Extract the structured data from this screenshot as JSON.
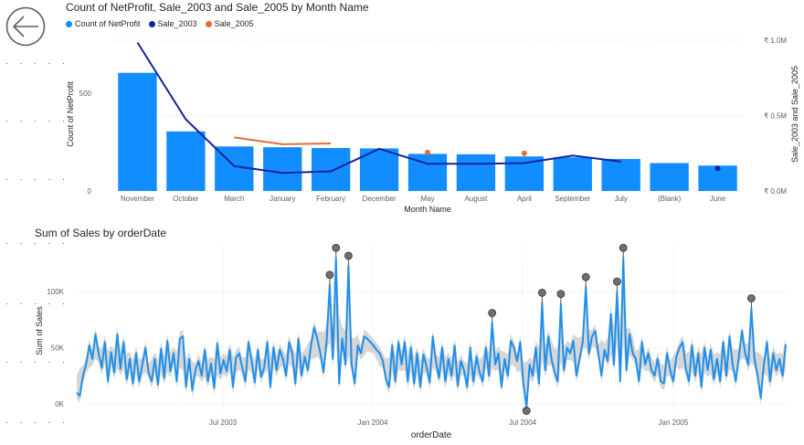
{
  "nav": {
    "back_icon": "back-arrow-icon"
  },
  "colors": {
    "bar": "#118DFF",
    "sale2003": "#12239E",
    "sale2005": "#E66C37",
    "line2": "#1F8FEA",
    "band": "#C8C8C8",
    "marker": "#707070"
  },
  "chart_data": [
    {
      "type": "bar",
      "title": "Count of NetProfit, Sale_2003 and Sale_2005 by Month Name",
      "xlabel": "Month Name",
      "ylabel": "Count of NetProfit",
      "y2label": "Sale_2003 and Sale_2005",
      "categories": [
        "November",
        "October",
        "March",
        "January",
        "February",
        "December",
        "May",
        "August",
        "April",
        "September",
        "July",
        "(Blank)",
        "June"
      ],
      "ylim": [
        0,
        800
      ],
      "yticks": [
        0,
        500
      ],
      "y2lim": [
        0,
        1000000
      ],
      "y2ticks": [
        {
          "value": 0,
          "label": "₹ 0.0M"
        },
        {
          "value": 500000,
          "label": "₹ 0.5M"
        },
        {
          "value": 1000000,
          "label": "₹ 1.0M"
        }
      ],
      "legend_position": "top-left",
      "series": [
        {
          "name": "Count of NetProfit",
          "kind": "bar",
          "axis": "left",
          "values": [
            605,
            305,
            228,
            224,
            220,
            218,
            190,
            188,
            177,
            172,
            164,
            143,
            130
          ]
        },
        {
          "name": "Sale_2003",
          "kind": "line",
          "axis": "right",
          "values": [
            985000,
            475000,
            165000,
            120000,
            130000,
            280000,
            180000,
            180000,
            185000,
            235000,
            195000,
            null,
            150000
          ]
        },
        {
          "name": "Sale_2005",
          "kind": "line",
          "axis": "right",
          "values": [
            null,
            null,
            355000,
            310000,
            315000,
            null,
            255000,
            null,
            250000,
            null,
            null,
            null,
            null
          ]
        }
      ]
    },
    {
      "type": "line",
      "title": "Sum of Sales by orderDate",
      "xlabel": "orderDate",
      "ylabel": "Sum of Sales",
      "ylim": [
        -5000,
        140000
      ],
      "yticks": [
        {
          "value": 0,
          "label": "0K"
        },
        {
          "value": 50000,
          "label": "50K"
        },
        {
          "value": 100000,
          "label": "100K"
        }
      ],
      "xticks": [
        "Jul 2003",
        "Jan 2004",
        "Jul 2004",
        "Jan 2005"
      ],
      "band": "expected range",
      "series": [
        {
          "name": "Sum of Sales",
          "values": [
            10000,
            7000,
            25000,
            35000,
            52000,
            40000,
            62000,
            45000,
            32000,
            55000,
            20000,
            46000,
            28000,
            62000,
            31000,
            55000,
            22000,
            40000,
            18000,
            45000,
            20000,
            35000,
            50000,
            28000,
            20000,
            40000,
            17000,
            49000,
            23000,
            56000,
            29000,
            45000,
            20000,
            58000,
            60000,
            15000,
            40000,
            12000,
            30000,
            38000,
            25000,
            48000,
            20000,
            36000,
            14000,
            54000,
            27000,
            39000,
            29000,
            48000,
            15000,
            41000,
            45000,
            32000,
            20000,
            55000,
            38000,
            19000,
            48000,
            24000,
            32000,
            55000,
            15000,
            50000,
            30000,
            48000,
            40000,
            25000,
            55000,
            45000,
            18000,
            58000,
            25000,
            42000,
            30000,
            52000,
            68000,
            58000,
            45000,
            28000,
            55000,
            106000,
            40000,
            130000,
            18000,
            58000,
            35000,
            123000,
            35000,
            18000,
            52000,
            45000,
            60000,
            58000,
            55000,
            52000,
            48000,
            45000,
            38000,
            22000,
            15000,
            52000,
            20000,
            55000,
            35000,
            55000,
            20000,
            50000,
            18000,
            45000,
            15000,
            44000,
            33000,
            19000,
            60000,
            38000,
            23000,
            50000,
            20000,
            40000,
            25000,
            52000,
            16000,
            38000,
            30000,
            15000,
            50000,
            20000,
            42000,
            28000,
            20000,
            50000,
            25000,
            72000,
            35000,
            45000,
            15000,
            40000,
            25000,
            56000,
            50000,
            38000,
            55000,
            18000,
            -3000,
            35000,
            25000,
            50000,
            18000,
            90000,
            30000,
            60000,
            40000,
            28000,
            20000,
            89000,
            30000,
            50000,
            45000,
            56000,
            25000,
            40000,
            55000,
            104000,
            45000,
            60000,
            65000,
            45000,
            25000,
            48000,
            38000,
            80000,
            35000,
            100000,
            20000,
            130000,
            30000,
            62000,
            45000,
            40000,
            20000,
            55000,
            35000,
            45000,
            30000,
            25000,
            40000,
            20000,
            18000,
            45000,
            30000,
            20000,
            42000,
            50000,
            55000,
            32000,
            20000,
            52000,
            25000,
            45000,
            15000,
            50000,
            30000,
            48000,
            22000,
            40000,
            20000,
            55000,
            25000,
            60000,
            35000,
            20000,
            42000,
            65000,
            45000,
            35000,
            85000,
            40000,
            25000,
            5000,
            35000,
            55000,
            20000,
            45000,
            30000,
            40000,
            25000,
            53000
          ]
        }
      ],
      "highlighted_points": [
        {
          "date_label": "peak",
          "value": 106000
        },
        {
          "date_label": "peak",
          "value": 130000
        },
        {
          "date_label": "peak",
          "value": 123000
        },
        {
          "date_label": "peak",
          "value": 72000
        },
        {
          "date_label": "dip",
          "value": -3000
        },
        {
          "date_label": "peak",
          "value": 90000
        },
        {
          "date_label": "peak",
          "value": 89000
        },
        {
          "date_label": "peak",
          "value": 104000
        },
        {
          "date_label": "peak",
          "value": 100000
        },
        {
          "date_label": "peak",
          "value": 130000
        },
        {
          "date_label": "peak",
          "value": 85000
        }
      ]
    }
  ]
}
